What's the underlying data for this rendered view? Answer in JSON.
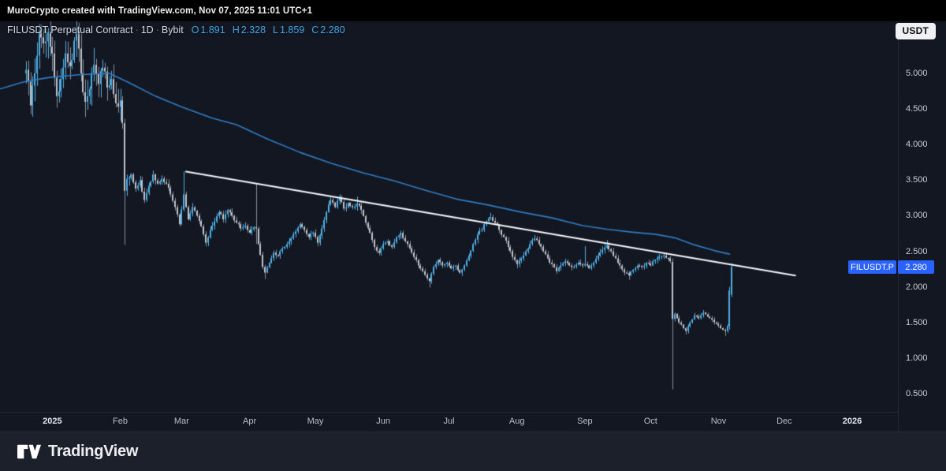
{
  "attribution_bar": {
    "text": "MuroCrypto created with TradingView.com, Nov 07, 2025 11:01 UTC+1"
  },
  "header": {
    "symbol_title": "FILUSDT Perpetual Contract",
    "sep": "·",
    "interval": "1D",
    "exchange": "Bybit",
    "ohlc": [
      {
        "label": "O",
        "value": "1.891"
      },
      {
        "label": "H",
        "value": "2.328"
      },
      {
        "label": "L",
        "value": "1.859"
      },
      {
        "label": "C",
        "value": "2.280"
      }
    ],
    "currency_button": "USDT"
  },
  "price_scale": {
    "last_price_label": {
      "symbol": "FILUSDT.P",
      "value": "2.280"
    }
  },
  "footer": {
    "brand": "TradingView"
  },
  "colors": {
    "background": "#131722",
    "topbar_bg": "#000000",
    "up": "#4fb0e6",
    "up_wick": "#4fb0e6",
    "down_body": "#c2c5cc",
    "down_wick": "#8b8f99",
    "ma_line": "#2f7dc3",
    "trendline": "#f5f6f8",
    "axis_text": "#c9ccd2",
    "price_label_bg": "#2962ff",
    "footer_bg": "#1c202a",
    "divider": "#242837"
  },
  "chart_data": {
    "type": "candlestick",
    "symbol": "FILUSDT.P",
    "exchange": "Bybit",
    "interval": "1D",
    "title": "FILUSDT Perpetual Contract · 1D · Bybit",
    "last_candle": {
      "open": 1.891,
      "high": 2.328,
      "low": 1.859,
      "close": 2.28
    },
    "visible_price_range": [
      0.24,
      5.72
    ],
    "grid": "off",
    "legend_position": "top-left",
    "y_ticks": [
      {
        "t": "5.000",
        "p": 5.0
      },
      {
        "t": "4.500",
        "p": 4.5
      },
      {
        "t": "4.000",
        "p": 4.0
      },
      {
        "t": "3.500",
        "p": 3.5
      },
      {
        "t": "3.000",
        "p": 3.0
      },
      {
        "t": "2.500",
        "p": 2.5
      },
      {
        "t": "2.000",
        "p": 2.0
      },
      {
        "t": "1.500",
        "p": 1.5
      },
      {
        "t": "1.000",
        "p": 1.0
      },
      {
        "t": "0.500",
        "p": 0.5
      }
    ],
    "x_ticks": [
      {
        "t": "2025",
        "d": 12,
        "bold": true
      },
      {
        "t": "Feb",
        "d": 43
      },
      {
        "t": "Mar",
        "d": 71
      },
      {
        "t": "Apr",
        "d": 102
      },
      {
        "t": "May",
        "d": 132
      },
      {
        "t": "Jun",
        "d": 163
      },
      {
        "t": "Jul",
        "d": 193
      },
      {
        "t": "Aug",
        "d": 224
      },
      {
        "t": "Sep",
        "d": 255
      },
      {
        "t": "Oct",
        "d": 285
      },
      {
        "t": "Nov",
        "d": 316
      },
      {
        "t": "Dec",
        "d": 346
      },
      {
        "t": "2026",
        "d": 377,
        "bold": true
      }
    ],
    "close_anchors": [
      [
        0,
        5.05
      ],
      [
        2,
        4.55
      ],
      [
        4,
        5.0
      ],
      [
        6,
        5.6
      ],
      [
        8,
        5.42
      ],
      [
        10,
        5.58
      ],
      [
        12,
        5.28
      ],
      [
        14,
        4.68
      ],
      [
        16,
        4.92
      ],
      [
        18,
        5.28
      ],
      [
        20,
        5.1
      ],
      [
        23,
        5.6
      ],
      [
        25,
        5.0
      ],
      [
        27,
        4.6
      ],
      [
        29,
        4.78
      ],
      [
        31,
        5.12
      ],
      [
        33,
        4.85
      ],
      [
        35,
        5.08
      ],
      [
        37,
        4.8
      ],
      [
        39,
        4.92
      ],
      [
        41,
        4.58
      ],
      [
        43,
        4.62
      ],
      [
        44,
        4.3
      ],
      [
        45,
        3.35
      ],
      [
        46,
        3.52
      ],
      [
        48,
        3.58
      ],
      [
        50,
        3.38
      ],
      [
        52,
        3.5
      ],
      [
        54,
        3.22
      ],
      [
        56,
        3.42
      ],
      [
        58,
        3.58
      ],
      [
        60,
        3.45
      ],
      [
        62,
        3.52
      ],
      [
        64,
        3.45
      ],
      [
        66,
        3.3
      ],
      [
        68,
        3.12
      ],
      [
        70,
        2.88
      ],
      [
        72,
        3.3
      ],
      [
        73,
        3.12
      ],
      [
        74,
        2.95
      ],
      [
        76,
        3.12
      ],
      [
        78,
        3.0
      ],
      [
        80,
        2.85
      ],
      [
        82,
        2.62
      ],
      [
        84,
        2.8
      ],
      [
        86,
        2.92
      ],
      [
        88,
        3.05
      ],
      [
        90,
        2.95
      ],
      [
        92,
        3.08
      ],
      [
        94,
        3.0
      ],
      [
        96,
        2.9
      ],
      [
        98,
        2.82
      ],
      [
        100,
        2.86
      ],
      [
        102,
        2.76
      ],
      [
        104,
        2.84
      ],
      [
        105,
        2.82
      ],
      [
        106,
        2.6
      ],
      [
        107,
        2.45
      ],
      [
        108,
        2.28
      ],
      [
        109,
        2.2
      ],
      [
        111,
        2.34
      ],
      [
        113,
        2.48
      ],
      [
        115,
        2.44
      ],
      [
        117,
        2.54
      ],
      [
        119,
        2.6
      ],
      [
        121,
        2.68
      ],
      [
        123,
        2.78
      ],
      [
        125,
        2.88
      ],
      [
        127,
        2.8
      ],
      [
        129,
        2.7
      ],
      [
        131,
        2.76
      ],
      [
        133,
        2.62
      ],
      [
        135,
        2.82
      ],
      [
        137,
        3.05
      ],
      [
        139,
        3.22
      ],
      [
        141,
        3.12
      ],
      [
        143,
        3.26
      ],
      [
        145,
        3.1
      ],
      [
        147,
        3.18
      ],
      [
        149,
        3.12
      ],
      [
        151,
        3.17
      ],
      [
        153,
        3.08
      ],
      [
        155,
        2.9
      ],
      [
        157,
        2.76
      ],
      [
        159,
        2.56
      ],
      [
        161,
        2.48
      ],
      [
        163,
        2.6
      ],
      [
        165,
        2.64
      ],
      [
        167,
        2.56
      ],
      [
        169,
        2.7
      ],
      [
        171,
        2.76
      ],
      [
        173,
        2.64
      ],
      [
        175,
        2.54
      ],
      [
        177,
        2.42
      ],
      [
        179,
        2.3
      ],
      [
        181,
        2.22
      ],
      [
        183,
        2.12
      ],
      [
        184,
        2.08
      ],
      [
        186,
        2.28
      ],
      [
        188,
        2.38
      ],
      [
        190,
        2.3
      ],
      [
        192,
        2.34
      ],
      [
        194,
        2.26
      ],
      [
        196,
        2.3
      ],
      [
        198,
        2.2
      ],
      [
        200,
        2.3
      ],
      [
        202,
        2.44
      ],
      [
        204,
        2.6
      ],
      [
        206,
        2.74
      ],
      [
        208,
        2.8
      ],
      [
        210,
        2.92
      ],
      [
        212,
        2.98
      ],
      [
        214,
        2.9
      ],
      [
        216,
        2.8
      ],
      [
        218,
        2.7
      ],
      [
        220,
        2.56
      ],
      [
        222,
        2.42
      ],
      [
        224,
        2.32
      ],
      [
        226,
        2.4
      ],
      [
        228,
        2.5
      ],
      [
        230,
        2.6
      ],
      [
        232,
        2.68
      ],
      [
        234,
        2.6
      ],
      [
        236,
        2.5
      ],
      [
        238,
        2.4
      ],
      [
        240,
        2.32
      ],
      [
        242,
        2.22
      ],
      [
        244,
        2.3
      ],
      [
        246,
        2.36
      ],
      [
        248,
        2.3
      ],
      [
        250,
        2.28
      ],
      [
        252,
        2.34
      ],
      [
        254,
        2.3
      ],
      [
        255,
        2.32
      ],
      [
        257,
        2.26
      ],
      [
        259,
        2.34
      ],
      [
        261,
        2.44
      ],
      [
        263,
        2.52
      ],
      [
        265,
        2.58
      ],
      [
        267,
        2.5
      ],
      [
        269,
        2.4
      ],
      [
        271,
        2.3
      ],
      [
        273,
        2.2
      ],
      [
        275,
        2.16
      ],
      [
        277,
        2.24
      ],
      [
        279,
        2.3
      ],
      [
        281,
        2.28
      ],
      [
        283,
        2.34
      ],
      [
        285,
        2.3
      ],
      [
        287,
        2.38
      ],
      [
        289,
        2.42
      ],
      [
        291,
        2.44
      ],
      [
        293,
        2.4
      ],
      [
        294,
        2.36
      ],
      [
        295,
        1.55
      ],
      [
        296,
        1.62
      ],
      [
        298,
        1.5
      ],
      [
        300,
        1.42
      ],
      [
        301,
        1.38
      ],
      [
        303,
        1.5
      ],
      [
        305,
        1.6
      ],
      [
        307,
        1.56
      ],
      [
        309,
        1.64
      ],
      [
        311,
        1.58
      ],
      [
        313,
        1.54
      ],
      [
        315,
        1.48
      ],
      [
        317,
        1.42
      ],
      [
        319,
        1.38
      ],
      [
        320,
        1.45
      ],
      [
        321,
        1.95
      ],
      [
        322,
        2.28
      ]
    ],
    "candle_overrides": {
      "45": {
        "h": 4.36,
        "l": 2.59
      },
      "72": {
        "h": 3.62
      },
      "82": {
        "l": 2.57
      },
      "105": {
        "h": 3.46,
        "l": 2.6
      },
      "109": {
        "l": 2.11
      },
      "143": {
        "h": 3.3
      },
      "151": {
        "h": 3.27
      },
      "184": {
        "l": 1.99
      },
      "212": {
        "h": 3.04
      },
      "224": {
        "l": 2.26
      },
      "255": {
        "h": 2.57
      },
      "265": {
        "h": 2.66
      },
      "275": {
        "l": 2.1
      },
      "295": {
        "o": 2.35,
        "h": 2.4,
        "l": 0.56
      },
      "301": {
        "l": 1.33
      },
      "319": {
        "l": 1.31
      },
      "321": {
        "o": 1.45,
        "h": 2.0,
        "l": 1.4
      },
      "322": {
        "o": 1.891,
        "h": 2.328,
        "l": 1.859,
        "c": 2.28
      }
    },
    "ma_line": [
      [
        -12,
        4.78
      ],
      [
        -1,
        4.88
      ],
      [
        10,
        4.94
      ],
      [
        24,
        4.98
      ],
      [
        38,
        5.0
      ],
      [
        47,
        4.87
      ],
      [
        59,
        4.68
      ],
      [
        71,
        4.53
      ],
      [
        85,
        4.37
      ],
      [
        96,
        4.28
      ],
      [
        110,
        4.08
      ],
      [
        125,
        3.89
      ],
      [
        139,
        3.74
      ],
      [
        154,
        3.6
      ],
      [
        168,
        3.49
      ],
      [
        182,
        3.36
      ],
      [
        197,
        3.23
      ],
      [
        211,
        3.15
      ],
      [
        226,
        3.05
      ],
      [
        240,
        2.97
      ],
      [
        254,
        2.86
      ],
      [
        265,
        2.81
      ],
      [
        276,
        2.77
      ],
      [
        287,
        2.74
      ],
      [
        296,
        2.69
      ],
      [
        305,
        2.59
      ],
      [
        314,
        2.51
      ],
      [
        321,
        2.46
      ]
    ],
    "trendline": {
      "from": [
        73,
        3.62
      ],
      "to": [
        351,
        2.16
      ]
    }
  }
}
